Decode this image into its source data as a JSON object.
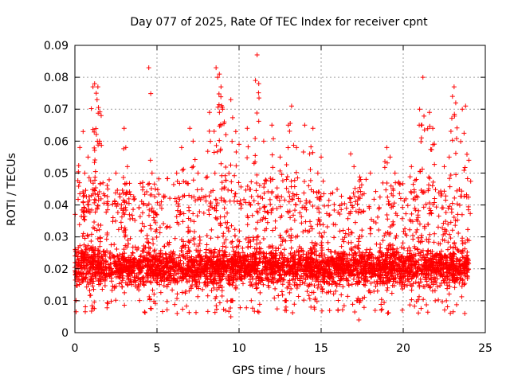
{
  "chart_data": {
    "type": "scatter",
    "title": "Day 077 of 2025, Rate Of TEC Index for receiver cpnt",
    "xlabel": "GPS time / hours",
    "ylabel": "ROTI / TECUs",
    "xlim": [
      0,
      25
    ],
    "ylim": [
      0,
      0.09
    ],
    "x_ticks": [
      0,
      5,
      10,
      15,
      20,
      25
    ],
    "x_tick_labels": [
      "0",
      "5",
      "10",
      "15",
      "20",
      "25"
    ],
    "y_ticks": [
      0,
      0.01,
      0.02,
      0.03,
      0.04,
      0.05,
      0.06,
      0.07,
      0.08,
      0.09
    ],
    "y_tick_labels": [
      "0",
      "0.01",
      "0.02",
      "0.03",
      "0.04",
      "0.05",
      "0.06",
      "0.07",
      "0.08",
      "0.09"
    ],
    "grid": true,
    "marker": "+",
    "series_color": "#ff0000",
    "grid_color": "#a0a0a0",
    "series": [
      {
        "name": "ROTI",
        "description_points": "dense cloud 0-24 h, bulk 0.01-0.03, frequent excursions to 0.04-0.06",
        "x": [
          0.3,
          0.5,
          0.6,
          0.8,
          1.1,
          1.2,
          1.3,
          1.35,
          1.4,
          1.5,
          1.6,
          2.0,
          2.5,
          3.0,
          3.1,
          3.2,
          4.5,
          4.6,
          4.7,
          6.5,
          7.0,
          7.2,
          7.5,
          8.2,
          8.6,
          8.7,
          8.8,
          8.9,
          9.0,
          9.1,
          9.2,
          9.5,
          9.8,
          10.0,
          10.5,
          11.0,
          11.1,
          11.2,
          11.5,
          12.0,
          12.5,
          13.0,
          13.2,
          13.5,
          14.0,
          14.3,
          14.5,
          14.8,
          15.0,
          16.8,
          17.0,
          18.0,
          19.0,
          19.2,
          19.5,
          20.5,
          20.8,
          21.0,
          21.1,
          21.2,
          21.6,
          21.8,
          22.5,
          22.8,
          23.0,
          23.1,
          23.2,
          23.6,
          23.8,
          24.0,
          17.3,
          4.9,
          6.2,
          9.5,
          12.8
        ],
        "y": [
          0.058,
          0.063,
          0.05,
          0.055,
          0.077,
          0.078,
          0.075,
          0.073,
          0.077,
          0.06,
          0.068,
          0.045,
          0.05,
          0.064,
          0.058,
          0.052,
          0.083,
          0.054,
          0.05,
          0.058,
          0.064,
          0.06,
          0.05,
          0.069,
          0.083,
          0.08,
          0.081,
          0.077,
          0.07,
          0.066,
          0.062,
          0.073,
          0.063,
          0.059,
          0.064,
          0.079,
          0.087,
          0.078,
          0.06,
          0.065,
          0.055,
          0.065,
          0.071,
          0.058,
          0.065,
          0.056,
          0.064,
          0.05,
          0.055,
          0.056,
          0.052,
          0.05,
          0.058,
          0.055,
          0.05,
          0.052,
          0.048,
          0.07,
          0.065,
          0.08,
          0.069,
          0.064,
          0.052,
          0.055,
          0.074,
          0.077,
          0.072,
          0.07,
          0.071,
          0.054,
          0.004,
          0.045,
          0.05,
          0.005,
          0.007
        ]
      }
    ],
    "band": {
      "x_start": 0,
      "x_end": 24,
      "core_low": 0.012,
      "core_high": 0.028,
      "spread_low": 0.006,
      "spread_high": 0.045
    }
  }
}
